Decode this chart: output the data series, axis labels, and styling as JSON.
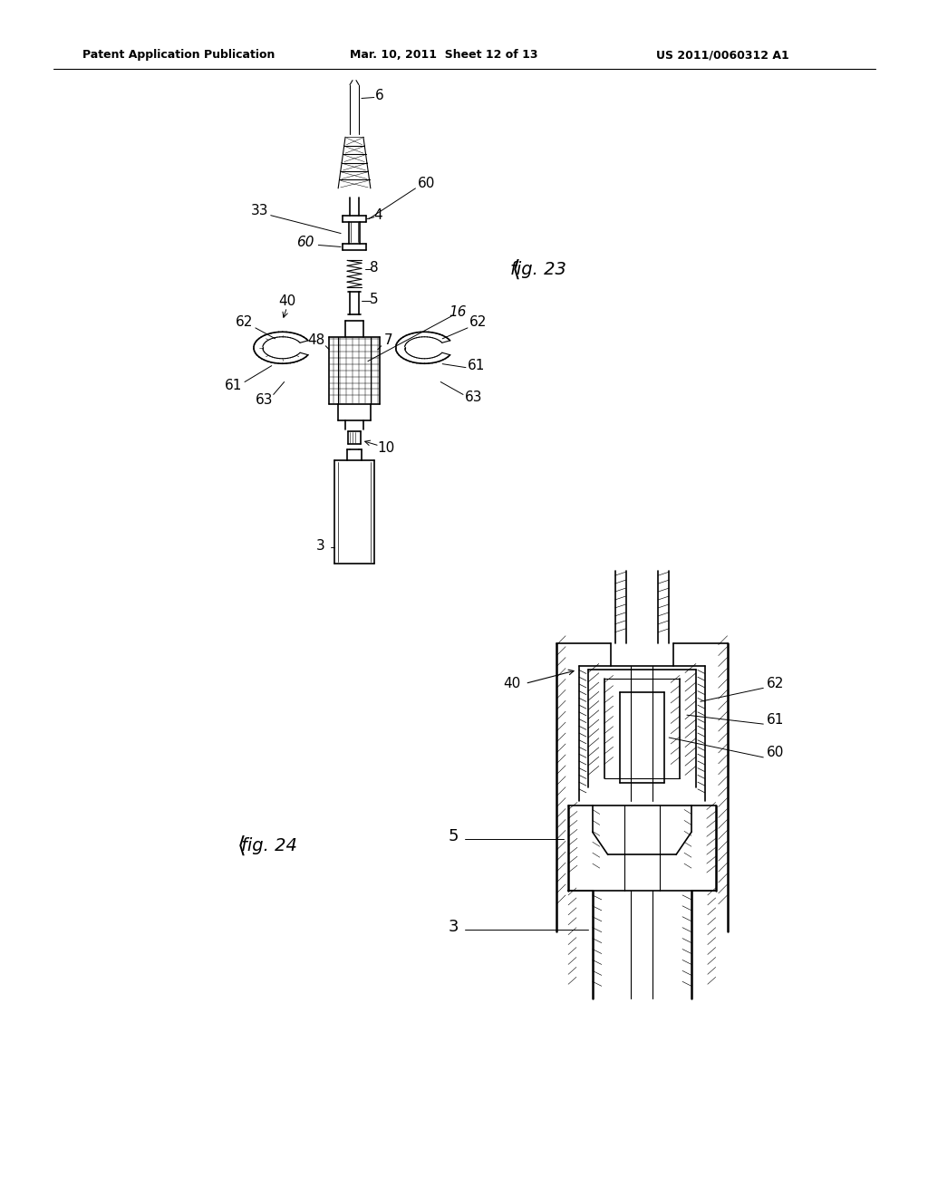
{
  "bg_color": "#ffffff",
  "text_color": "#000000",
  "line_color": "#000000",
  "header_left": "Patent Application Publication",
  "header_center": "Mar. 10, 2011  Sheet 12 of 13",
  "header_right": "US 2011/0060312 A1",
  "fig23_label": "fig. 23",
  "fig24_label": "fig. 24",
  "fig_width": 10.24,
  "fig_height": 13.2,
  "dpi": 100
}
